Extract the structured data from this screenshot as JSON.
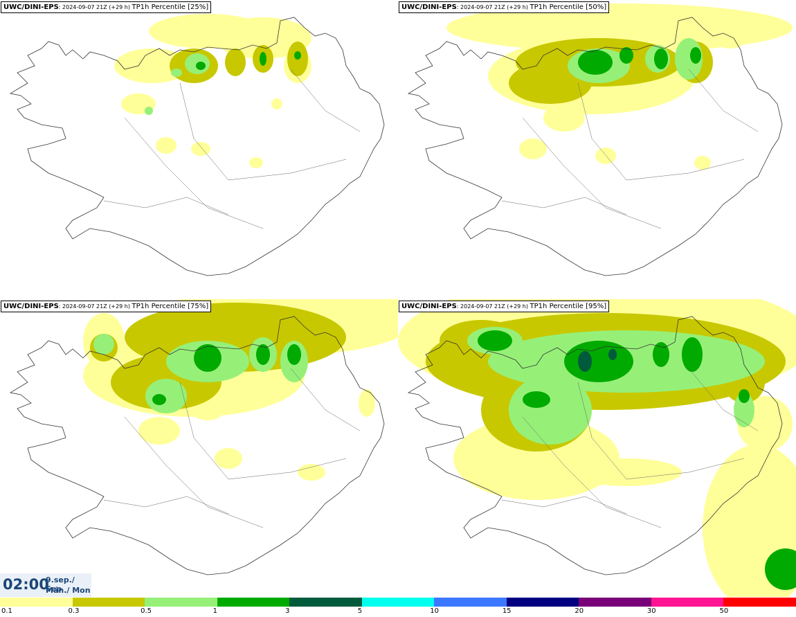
{
  "panels": [
    {
      "model": "UWC/DINI-EPS",
      "run": "2024-09-07 21Z (+29 h)",
      "parameter": "TP1h Percentile [25%]",
      "level": "p25"
    },
    {
      "model": "UWC/DINI-EPS",
      "run": "2024-09-07 21Z (+29 h)",
      "parameter": "TP1h Percentile [50%]",
      "level": "p50"
    },
    {
      "model": "UWC/DINI-EPS",
      "run": "2024-09-07 21Z (+29 h)",
      "parameter": "TP1h Percentile [75%]",
      "level": "p75"
    },
    {
      "model": "UWC/DINI-EPS",
      "run": "2024-09-07 21Z (+29 h)",
      "parameter": "TP1h Percentile [95%]",
      "level": "p95"
    }
  ],
  "valid_time": {
    "time": "02:00",
    "date_line1": "9.sep./ Sep",
    "date_line2": "Mán./ Mon"
  },
  "legend": {
    "labels": [
      "0.1",
      "0.3",
      "0.5",
      "1",
      "3",
      "5",
      "10",
      "15",
      "20",
      "30",
      "50"
    ],
    "colors": [
      "#ffff99",
      "#c8c800",
      "#96f078",
      "#00aa00",
      "#005a3c",
      "#00ffee",
      "#3c78ff",
      "#000080",
      "#780078",
      "#ff1493",
      "#ff0000"
    ]
  }
}
